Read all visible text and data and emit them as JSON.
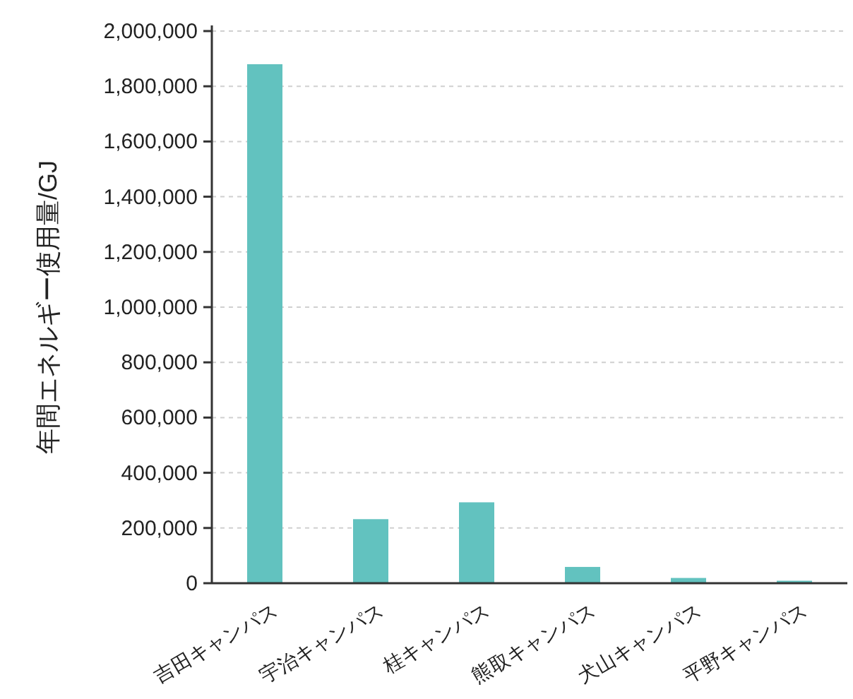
{
  "chart_data": {
    "type": "bar",
    "ylabel": "年間エネルギー使用量/GJ",
    "categories": [
      "吉田キャンパス",
      "宇治キャンパス",
      "桂キャンパス",
      "熊取キャンパス",
      "犬山キャンパス",
      "平野キャンパス"
    ],
    "values": [
      1880000,
      232000,
      293000,
      59000,
      19000,
      9000
    ],
    "color": "#62c2bf",
    "ylim": [
      0,
      2000000
    ],
    "yticks": [
      {
        "value": 0,
        "label": "0"
      },
      {
        "value": 200000,
        "label": "200,000"
      },
      {
        "value": 400000,
        "label": "400,000"
      },
      {
        "value": 600000,
        "label": "600,000"
      },
      {
        "value": 800000,
        "label": "800,000"
      },
      {
        "value": 1000000,
        "label": "1,000,000"
      },
      {
        "value": 1200000,
        "label": "1,200,000"
      },
      {
        "value": 1400000,
        "label": "1,400,000"
      },
      {
        "value": 1600000,
        "label": "1,600,000"
      },
      {
        "value": 1800000,
        "label": "1,800,000"
      },
      {
        "value": 2000000,
        "label": "2,000,000"
      }
    ],
    "grid": "y"
  }
}
